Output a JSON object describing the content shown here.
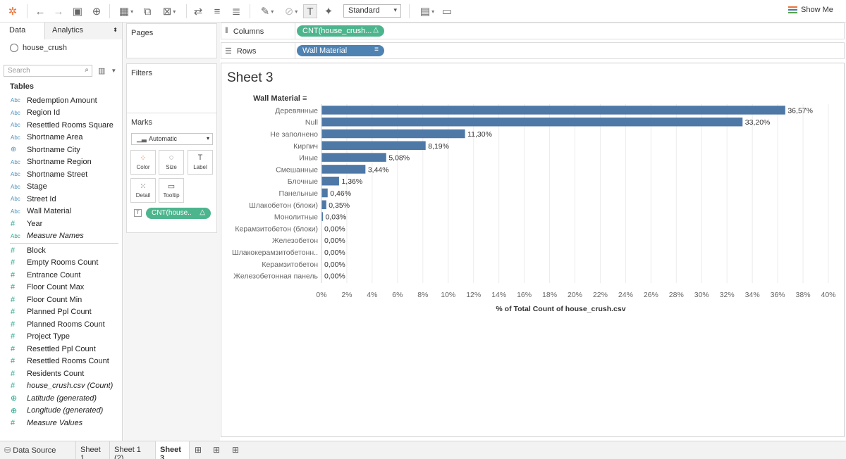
{
  "toolbar": {
    "view_mode": "Standard",
    "show_me": "Show Me"
  },
  "data_pane": {
    "tab_data": "Data",
    "tab_analytics": "Analytics",
    "datasource": "house_crush",
    "search_placeholder": "Search",
    "tables_header": "Tables",
    "dimensions": [
      {
        "type": "abc",
        "label": "Redemption Amount"
      },
      {
        "type": "abc",
        "label": "Region Id"
      },
      {
        "type": "abc",
        "label": "Resettled Rooms Square"
      },
      {
        "type": "abc",
        "label": "Shortname Area"
      },
      {
        "type": "geo",
        "label": "Shortname City"
      },
      {
        "type": "abc",
        "label": "Shortname Region"
      },
      {
        "type": "abc",
        "label": "Shortname Street"
      },
      {
        "type": "abc",
        "label": "Stage"
      },
      {
        "type": "abc",
        "label": "Street Id"
      },
      {
        "type": "abc",
        "label": "Wall Material"
      },
      {
        "type": "num",
        "label": "Year"
      },
      {
        "type": "abcg",
        "label": "Measure Names",
        "italic": true
      }
    ],
    "measures": [
      {
        "type": "num",
        "label": "Block"
      },
      {
        "type": "num",
        "label": "Empty Rooms Count"
      },
      {
        "type": "num",
        "label": "Entrance Count"
      },
      {
        "type": "num",
        "label": "Floor Count Max"
      },
      {
        "type": "num",
        "label": "Floor Count Min"
      },
      {
        "type": "num",
        "label": "Planned Ppl Count"
      },
      {
        "type": "num",
        "label": "Planned Rooms Count"
      },
      {
        "type": "num",
        "label": "Project Type"
      },
      {
        "type": "num",
        "label": "Resettled Ppl Count"
      },
      {
        "type": "num",
        "label": "Resettled Rooms Count"
      },
      {
        "type": "num",
        "label": "Residents Count"
      },
      {
        "type": "num",
        "label": "house_crush.csv (Count)",
        "italic": true
      },
      {
        "type": "geog",
        "label": "Latitude (generated)",
        "italic": true
      },
      {
        "type": "geog",
        "label": "Longitude (generated)",
        "italic": true
      },
      {
        "type": "num",
        "label": "Measure Values",
        "italic": true
      }
    ]
  },
  "cards": {
    "pages": "Pages",
    "filters": "Filters",
    "marks": "Marks",
    "mark_type": "Automatic",
    "buttons": [
      "Color",
      "Size",
      "Label",
      "Detail",
      "Tooltip"
    ],
    "marks_pill": "CNT(house.."
  },
  "shelves": {
    "columns_label": "Columns",
    "columns_pill": "CNT(house_crush...",
    "rows_label": "Rows",
    "rows_pill": "Wall Material"
  },
  "sheet_title": "Sheet 3",
  "chart_data": {
    "type": "bar",
    "orientation": "horizontal",
    "row_header": "Wall Material",
    "xlabel": "% of Total Count of house_crush.csv",
    "xlim": [
      0,
      40
    ],
    "xticks": [
      "0%",
      "2%",
      "4%",
      "6%",
      "8%",
      "10%",
      "12%",
      "14%",
      "16%",
      "18%",
      "20%",
      "22%",
      "24%",
      "26%",
      "28%",
      "30%",
      "32%",
      "34%",
      "36%",
      "38%",
      "40%"
    ],
    "categories": [
      "Деревянные",
      "Null",
      "Не заполнено",
      "Кирпич",
      "Иные",
      "Смешанные",
      "Блочные",
      "Панельные",
      "Шлакобетон (блоки)",
      "Монолитные",
      "Керамзитобетон (блоки)",
      "Железобетон",
      "Шлакокерамзитобетонн..",
      "Керамзитобетон",
      "Железобетонная панель"
    ],
    "values": [
      36.57,
      33.2,
      11.3,
      8.19,
      5.08,
      3.44,
      1.36,
      0.46,
      0.35,
      0.03,
      0.0,
      0.0,
      0.0,
      0.0,
      0.0
    ],
    "labels": [
      "36,57%",
      "33,20%",
      "11,30%",
      "8,19%",
      "5,08%",
      "3,44%",
      "1,36%",
      "0,46%",
      "0,35%",
      "0,03%",
      "0,00%",
      "0,00%",
      "0,00%",
      "0,00%",
      "0,00%"
    ],
    "bar_color": "#4e79a7",
    "grid": true
  },
  "bottom_tabs": {
    "data_source": "Data Source",
    "sheets": [
      "Sheet 1",
      "Sheet 1 (2)",
      "Sheet 3"
    ],
    "active": "Sheet 3"
  }
}
